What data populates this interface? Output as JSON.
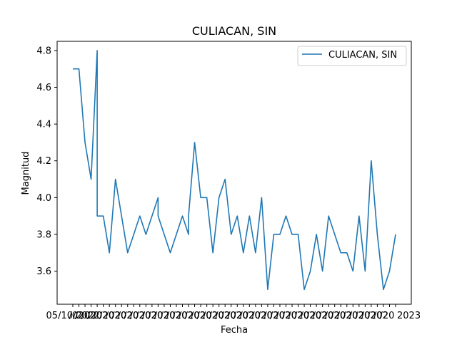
{
  "chart_data": {
    "type": "line",
    "title": "CULIACAN, SIN",
    "xlabel": "Fecha",
    "ylabel": "Magnitud",
    "ylim": [
      3.42,
      4.85
    ],
    "yticks": [
      "3.6",
      "3.8",
      "4.0",
      "4.2",
      "4.4",
      "4.6",
      "4.8"
    ],
    "grid": false,
    "legend_position": "top-right",
    "xtick_first_label": "05/10/2022",
    "xtick_last_label": "2023",
    "xtick_count": 54,
    "series": [
      {
        "name": "CULIACAN, SIN",
        "color": "#1f77b4",
        "x": [
          0,
          1,
          2,
          3,
          4,
          4,
          5,
          6,
          7,
          8,
          9,
          10,
          11,
          12,
          13,
          14,
          14,
          15,
          16,
          17,
          18,
          18,
          19,
          19,
          19,
          20,
          21,
          22,
          23,
          24,
          25,
          26,
          27,
          28,
          29,
          30,
          31,
          32,
          33,
          34,
          35,
          36,
          37,
          38,
          38,
          39,
          40,
          41,
          42,
          43,
          44,
          45,
          46,
          47,
          48,
          49,
          50,
          51,
          52,
          53
        ],
        "values": [
          4.7,
          4.7,
          4.3,
          4.1,
          4.8,
          3.9,
          3.9,
          3.7,
          4.1,
          3.9,
          3.7,
          3.8,
          3.9,
          3.8,
          3.9,
          4.0,
          3.9,
          3.8,
          3.7,
          3.8,
          3.9,
          3.9,
          3.8,
          3.9,
          3.9,
          4.3,
          4.0,
          4.0,
          3.7,
          4.0,
          4.1,
          3.8,
          3.9,
          3.7,
          3.9,
          3.7,
          4.0,
          3.5,
          3.8,
          3.8,
          3.9,
          3.8,
          3.8,
          3.5,
          3.5,
          3.6,
          3.8,
          3.6,
          3.9,
          3.8,
          3.7,
          3.7,
          3.6,
          3.9,
          3.6,
          4.2,
          3.8,
          3.5,
          3.6,
          3.8
        ]
      }
    ]
  }
}
